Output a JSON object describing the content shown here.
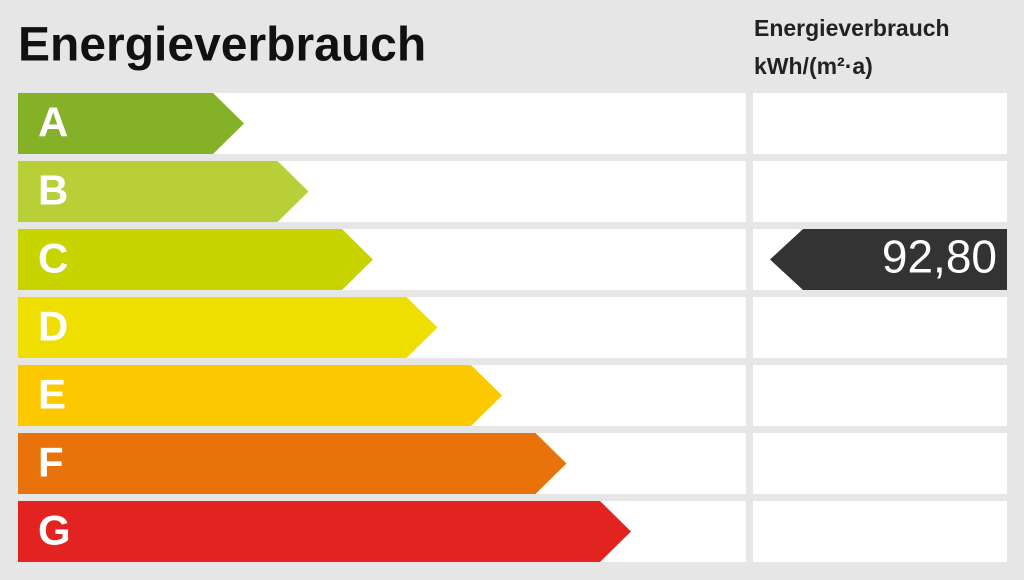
{
  "title": "Energieverbrauch",
  "header": {
    "unit_title": "Energieverbrauch",
    "unit": "kWh/(m²·a)"
  },
  "classes": [
    {
      "label": "A",
      "color": "#84b128"
    },
    {
      "label": "B",
      "color": "#b9cf38"
    },
    {
      "label": "C",
      "color": "#c8d400",
      "value": "92,80"
    },
    {
      "label": "D",
      "color": "#efdf00"
    },
    {
      "label": "E",
      "color": "#fcc800"
    },
    {
      "label": "F",
      "color": "#e8730c"
    },
    {
      "label": "G",
      "color": "#e2231f"
    }
  ]
}
